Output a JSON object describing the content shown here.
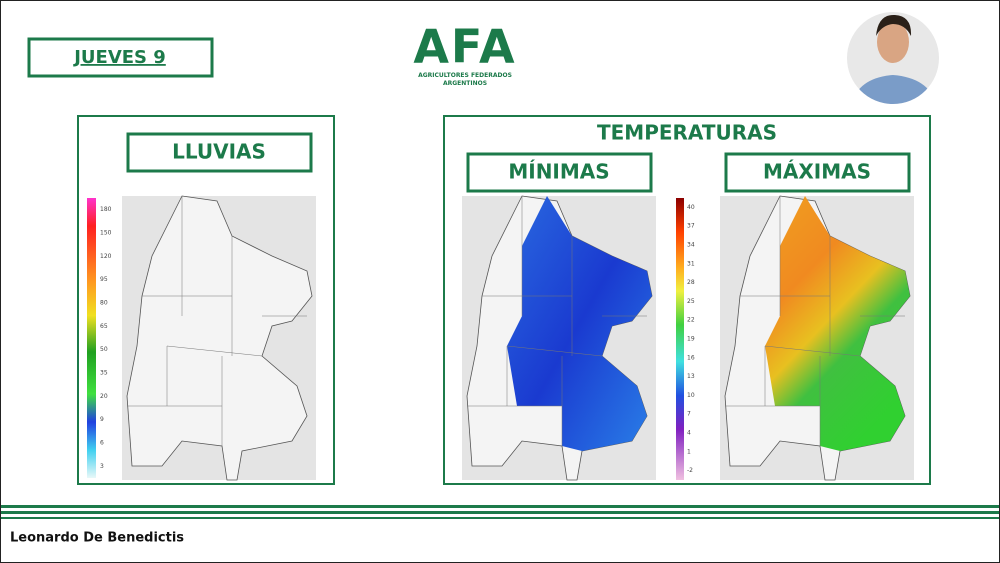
{
  "header": {
    "date": "JUEVES 9",
    "logo": {
      "text": "AFA",
      "subtitle_lines": [
        "AGRICULTORES FEDERADOS",
        "ARGENTINOS"
      ]
    }
  },
  "rain_panel": {
    "title": "LLUVIAS",
    "scale": [
      "180",
      "150",
      "120",
      "95",
      "80",
      "65",
      "50",
      "35",
      "20",
      "9",
      "6",
      "3"
    ]
  },
  "temperature_panel": {
    "title": "TEMPERATURAS",
    "minimum": {
      "title": "MÍNIMAS"
    },
    "maximum": {
      "title": "MÁXIMAS"
    },
    "scale": [
      "40",
      "37",
      "34",
      "31",
      "28",
      "25",
      "22",
      "19",
      "16",
      "13",
      "10",
      "7",
      "4",
      "1",
      "-2"
    ]
  },
  "footer": {
    "presenter": "Leonardo De Benedictis"
  }
}
